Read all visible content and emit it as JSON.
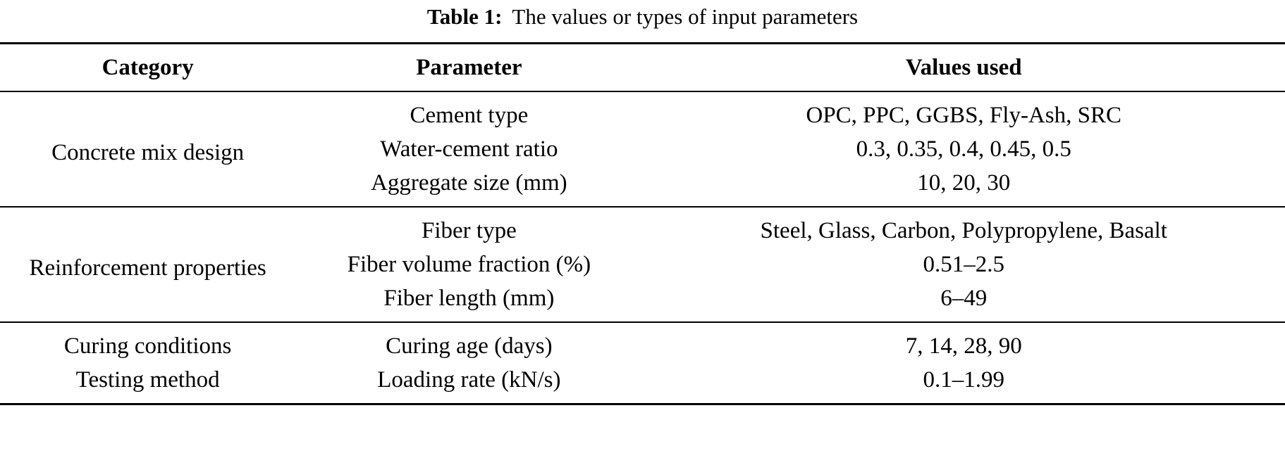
{
  "caption": {
    "label": "Table 1:",
    "text": "The values or types of input parameters"
  },
  "table": {
    "headers": [
      "Category",
      "Parameter",
      "Values used"
    ],
    "groups": [
      {
        "category": "Concrete mix design",
        "rows": [
          {
            "parameter": "Cement type",
            "values": "OPC, PPC, GGBS, Fly-Ash, SRC"
          },
          {
            "parameter": "Water-cement ratio",
            "values": "0.3, 0.35, 0.4, 0.45, 0.5"
          },
          {
            "parameter": "Aggregate size (mm)",
            "values": "10, 20, 30"
          }
        ]
      },
      {
        "category": "Reinforcement properties",
        "rows": [
          {
            "parameter": "Fiber type",
            "values": "Steel, Glass, Carbon, Polypropylene, Basalt"
          },
          {
            "parameter": "Fiber volume fraction (%)",
            "values": "0.51–2.5"
          },
          {
            "parameter": "Fiber length (mm)",
            "values": "6–49"
          }
        ]
      },
      {
        "rows": [
          {
            "category": "Curing conditions",
            "parameter": "Curing age (days)",
            "values": "7, 14, 28, 90"
          },
          {
            "category": "Testing method",
            "parameter": "Loading rate (kN/s)",
            "values": "0.1–1.99"
          }
        ]
      }
    ]
  }
}
